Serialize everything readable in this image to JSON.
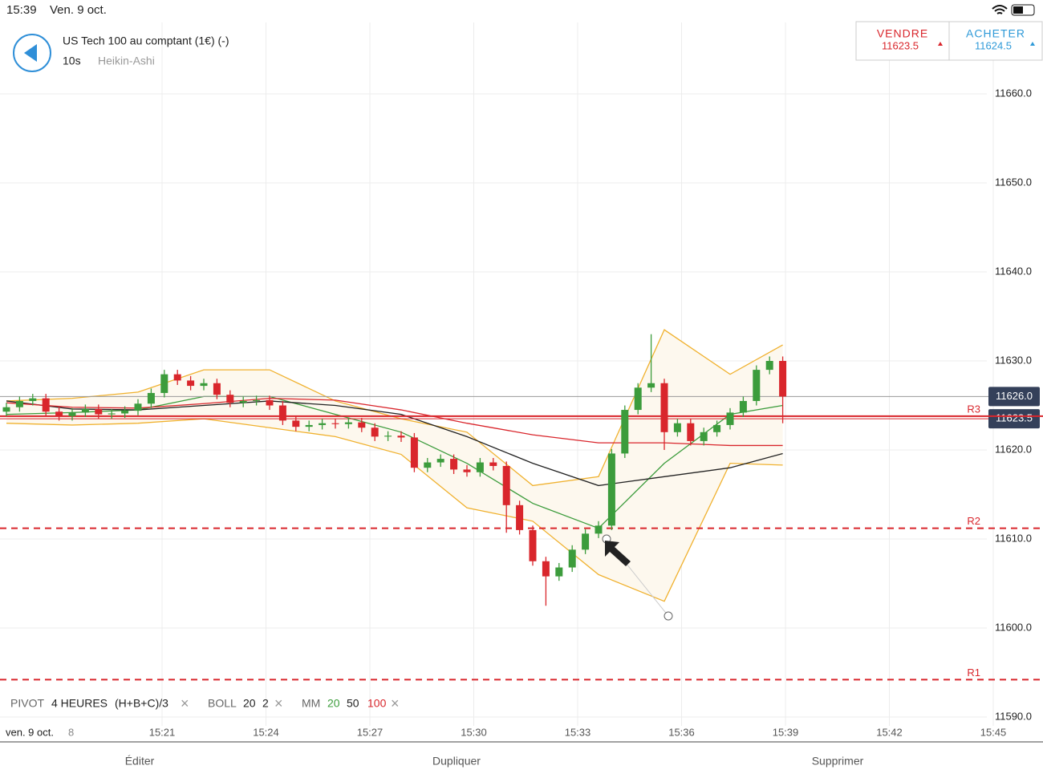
{
  "status_bar": {
    "time": "15:39",
    "date": "Ven. 9 oct."
  },
  "header": {
    "instrument": "US Tech 100 au comptant (1€) (-)",
    "interval": "10s",
    "chart_style": "Heikin-Ashi"
  },
  "quote": {
    "sell_label": "VENDRE",
    "sell_price": "11623.5",
    "buy_label": "ACHETER",
    "buy_price": "11624.5"
  },
  "chart_data": {
    "type": "candlestick",
    "open": [
      11624.3,
      11624.8,
      11625.5,
      11625.8,
      11624.3,
      11623.8,
      11624.2,
      11624.6,
      11624.0,
      11624.1,
      11624.4,
      11625.2,
      11626.4,
      11628.5,
      11627.8,
      11627.2,
      11627.5,
      11626.2,
      11625.3,
      11625.5,
      11625.6,
      11625.0,
      11623.3,
      11622.6,
      11622.8,
      11623.0,
      11622.9,
      11623.1,
      11622.5,
      11621.5,
      11621.6,
      11621.4,
      11618.0,
      11618.6,
      11619.0,
      11617.8,
      11617.5,
      11618.6,
      11618.2,
      11613.8,
      11611.0,
      11607.5,
      11605.8,
      11606.8,
      11608.8,
      11610.6,
      11611.5,
      11619.6,
      11624.5,
      11627.0,
      11627.5,
      11622.0,
      11623.0,
      11621.0,
      11622.0,
      11622.8,
      11624.2,
      11625.5,
      11629.0,
      11630.0
    ],
    "high": [
      11625.3,
      11626.0,
      11626.3,
      11626.3,
      11624.8,
      11624.7,
      11625.1,
      11625.1,
      11624.6,
      11624.9,
      11625.7,
      11626.9,
      11629.0,
      11629.0,
      11628.3,
      11628.0,
      11628.0,
      11626.7,
      11626.0,
      11626.1,
      11626.1,
      11625.5,
      11623.8,
      11623.3,
      11623.5,
      11623.5,
      11623.6,
      11623.6,
      11623.0,
      11622.1,
      11622.1,
      11621.9,
      11619.1,
      11619.5,
      11619.5,
      11618.3,
      11619.1,
      11619.1,
      11618.7,
      11614.3,
      11611.5,
      11608.0,
      11607.3,
      11609.3,
      11611.1,
      11612.0,
      11620.1,
      11625.0,
      11627.5,
      11633.0,
      11628.0,
      11623.5,
      11623.5,
      11622.5,
      11623.3,
      11624.7,
      11626.0,
      11629.5,
      11630.5,
      11630.5
    ],
    "low": [
      11623.8,
      11624.3,
      11625.0,
      11623.8,
      11623.3,
      11623.3,
      11623.7,
      11623.5,
      11623.5,
      11623.6,
      11623.9,
      11624.7,
      11625.9,
      11627.3,
      11626.7,
      11626.7,
      11625.7,
      11624.8,
      11624.8,
      11625.0,
      11624.5,
      11622.8,
      11622.1,
      11622.1,
      11622.3,
      11622.4,
      11622.4,
      11622.0,
      11621.0,
      11621.0,
      11620.9,
      11617.5,
      11617.5,
      11618.1,
      11617.3,
      11617.0,
      11617.0,
      11617.7,
      11610.7,
      11610.5,
      11607.0,
      11602.5,
      11605.3,
      11606.3,
      11608.3,
      11610.1,
      11611.0,
      11619.1,
      11624.0,
      11626.5,
      11620.0,
      11621.5,
      11620.5,
      11620.5,
      11621.5,
      11622.3,
      11623.7,
      11625.0,
      11628.5,
      11623.0
    ],
    "close": [
      11624.8,
      11625.5,
      11625.8,
      11624.3,
      11623.8,
      11624.2,
      11624.6,
      11624.0,
      11624.1,
      11624.4,
      11625.2,
      11626.4,
      11628.5,
      11627.8,
      11627.2,
      11627.5,
      11626.2,
      11625.3,
      11625.5,
      11625.6,
      11625.0,
      11623.3,
      11622.6,
      11622.8,
      11623.0,
      11622.9,
      11623.1,
      11622.5,
      11621.5,
      11621.6,
      11621.4,
      11618.0,
      11618.6,
      11619.0,
      11617.8,
      11617.5,
      11618.6,
      11618.2,
      11613.8,
      11611.0,
      11607.5,
      11605.8,
      11606.8,
      11608.8,
      11610.6,
      11611.5,
      11619.6,
      11624.5,
      11627.0,
      11627.5,
      11622.0,
      11623.0,
      11621.0,
      11622.0,
      11622.8,
      11624.2,
      11625.5,
      11629.0,
      11630.0,
      11626.0
    ],
    "up_color": "#3c9c3c",
    "down_color": "#d9262c",
    "line_index": [
      0,
      5,
      10,
      15,
      20,
      25,
      30,
      35,
      40,
      45,
      50,
      55,
      59
    ],
    "bollinger": {
      "color": "#f0b12e",
      "fill": "#fdf8ee",
      "upper": [
        11625.5,
        11625.8,
        11626.5,
        11629.0,
        11629.0,
        11625.5,
        11623.5,
        11622.0,
        11616.0,
        11617.0,
        11633.5,
        11628.5,
        11631.8
      ],
      "lower": [
        11623.0,
        11622.8,
        11623.0,
        11623.5,
        11622.5,
        11621.5,
        11619.5,
        11613.5,
        11612.0,
        11606.0,
        11603.0,
        11618.5,
        11618.3
      ]
    },
    "moving_averages": [
      {
        "name": "20",
        "color": "#3c9c3c",
        "values": [
          11624.0,
          11624.2,
          11624.5,
          11626.0,
          11626.0,
          11624.0,
          11622.0,
          11618.5,
          11614.0,
          11611.2,
          11618.5,
          11624.0,
          11625.0
        ]
      },
      {
        "name": "50",
        "color": "#222222",
        "values": [
          11625.5,
          11624.6,
          11624.5,
          11625.0,
          11625.5,
          11625.0,
          11624.0,
          11621.5,
          11618.5,
          11616.0,
          11617.0,
          11618.0,
          11619.6
        ]
      },
      {
        "name": "100",
        "color": "#d9262c",
        "values": [
          11625.3,
          11624.8,
          11624.7,
          11625.2,
          11625.8,
          11625.6,
          11624.5,
          11623.0,
          11621.7,
          11620.8,
          11620.8,
          11620.5,
          11620.5
        ]
      }
    ],
    "levels": [
      {
        "name": "R3",
        "value": 11623.8,
        "style": "solid"
      },
      {
        "name": "R2",
        "value": 11611.2,
        "style": "dashed"
      },
      {
        "name": "R1",
        "value": 11594.2,
        "style": "dashed"
      }
    ],
    "price_markers": [
      {
        "value": 11626.0,
        "label": "11626.0",
        "color": "#999999"
      },
      {
        "value": 11623.5,
        "label": "11623.5",
        "color": "#d9262c"
      }
    ],
    "ylim": [
      11589,
      11668
    ],
    "yticks": [
      {
        "value": 11660,
        "label": "11660.0"
      },
      {
        "value": 11650,
        "label": "11650.0"
      },
      {
        "value": 11640,
        "label": "11640.0"
      },
      {
        "value": 11630,
        "label": "11630.0"
      },
      {
        "value": 11620,
        "label": "11620.0"
      },
      {
        "value": 11610,
        "label": "11610.0"
      },
      {
        "value": 11600,
        "label": "11600.0"
      },
      {
        "value": 11590,
        "label": "11590.0"
      }
    ],
    "date_label": "ven. 9 oct.",
    "time_labels": [
      "8",
      "15:21",
      "15:24",
      "15:27",
      "15:30",
      "15:33",
      "15:36",
      "15:39",
      "15:42",
      "15:45"
    ],
    "grid": true
  },
  "indicators": {
    "pivot": [
      "PIVOT",
      "4 HEURES",
      "(H+B+C)/3"
    ],
    "boll": [
      "BOLL",
      "20",
      "2"
    ],
    "mm": "MM",
    "close_icon": "×"
  },
  "toolbar": [
    "Éditer",
    "Dupliquer",
    "Supprimer"
  ]
}
